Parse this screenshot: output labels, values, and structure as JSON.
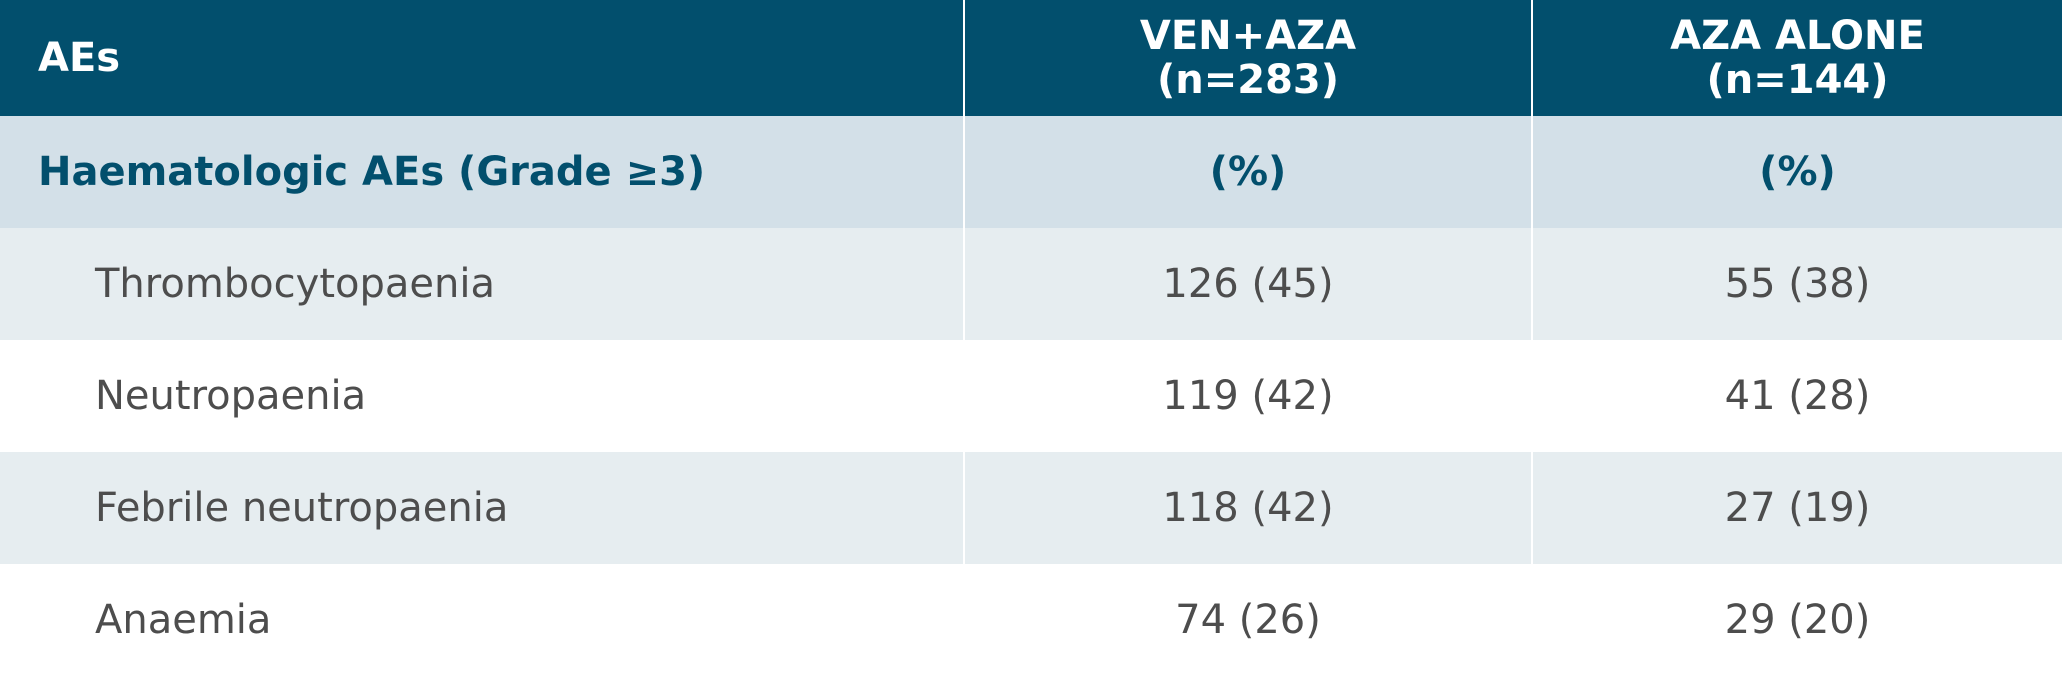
{
  "table": {
    "header": [
      "AEs",
      [
        "VEN+AZA",
        "(n=283)"
      ],
      [
        "AZA ALONE",
        "(n=144)"
      ]
    ],
    "subheader": [
      "Haematologic AEs (Grade ≥3)",
      "(%)",
      "(%)"
    ],
    "rows": [
      [
        "Thrombocytopaenia",
        "126 (45)",
        "55 (38)"
      ],
      [
        "Neutropaenia",
        "119 (42)",
        "41 (28)"
      ],
      [
        "Febrile neutropaenia",
        "118 (42)",
        "27 (19)"
      ],
      [
        "Anaemia",
        "74 (26)",
        "29 (20)"
      ]
    ]
  }
}
